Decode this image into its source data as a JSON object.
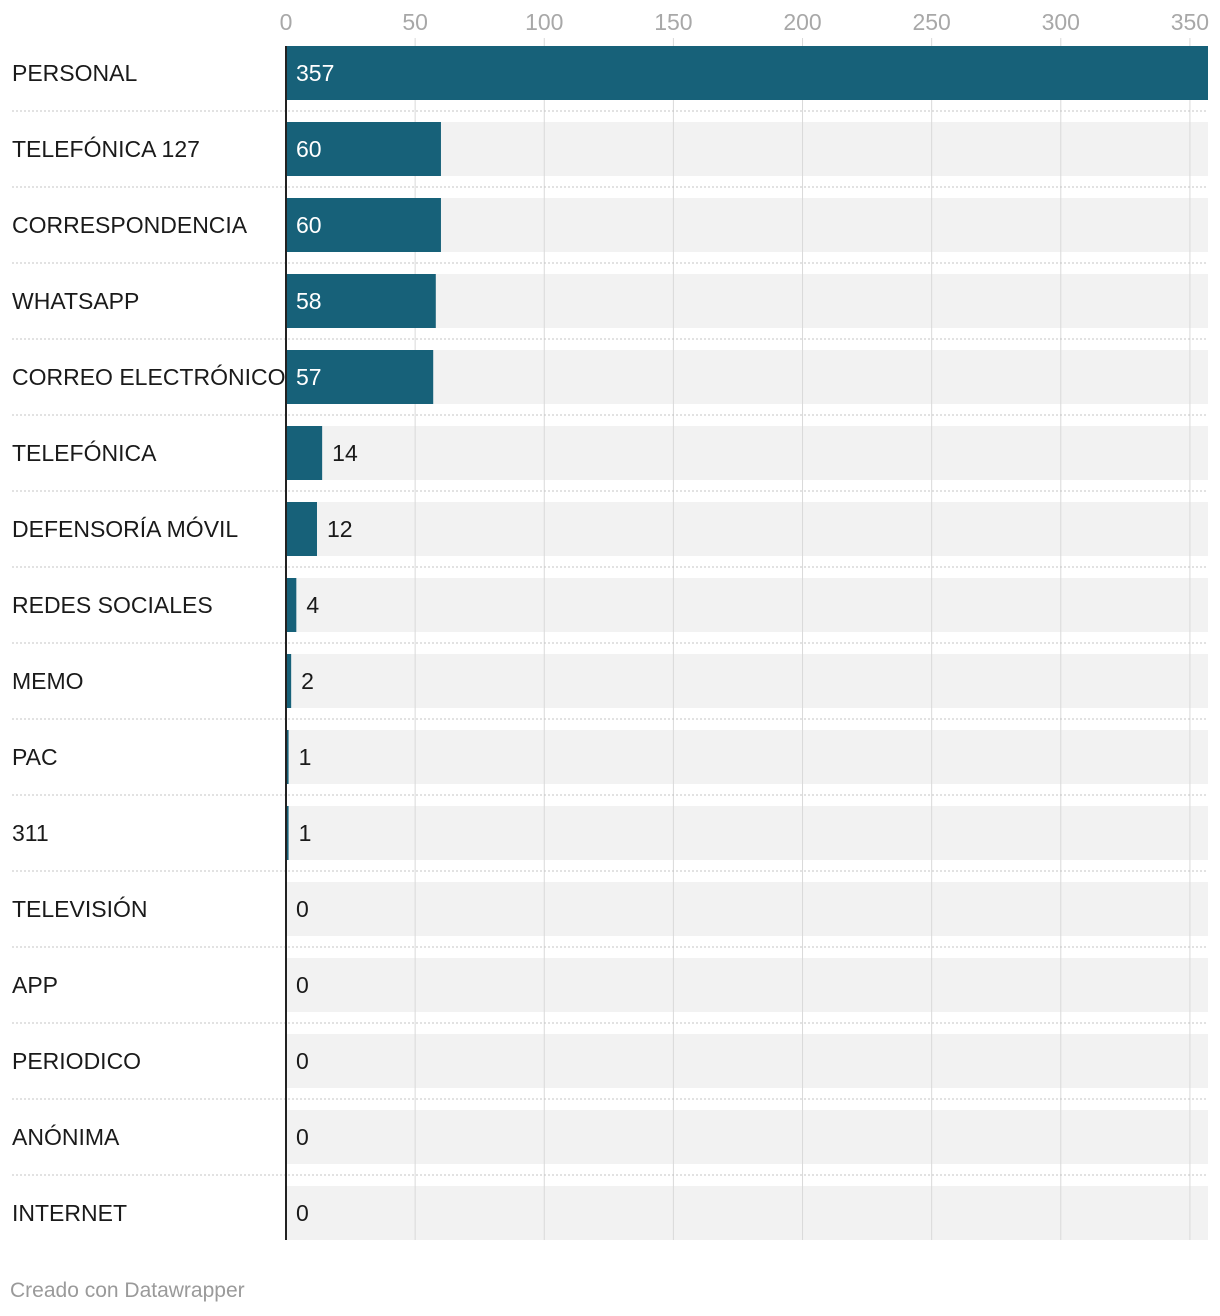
{
  "chart_data": {
    "type": "bar",
    "orientation": "horizontal",
    "categories": [
      "PERSONAL",
      "TELEFÓNICA 127",
      "CORRESPONDENCIA",
      "WHATSAPP",
      "CORREO ELECTRÓNICO",
      "TELEFÓNICA",
      "DEFENSORÍA MÓVIL",
      "REDES SOCIALES",
      "MEMO",
      "PAC",
      "311",
      "TELEVISIÓN",
      "APP",
      "PERIODICO",
      "ANÓNIMA",
      "INTERNET"
    ],
    "values": [
      357,
      60,
      60,
      58,
      57,
      14,
      12,
      4,
      2,
      1,
      1,
      0,
      0,
      0,
      0,
      0
    ],
    "xticks": [
      0,
      50,
      100,
      150,
      200,
      250,
      300,
      350
    ],
    "xlim": [
      0,
      357
    ],
    "grid": true,
    "axis_position": "top",
    "bar_color": "#176179",
    "background_bar_color": "#f2f2f2",
    "grid_color": "#d9d9d9",
    "label_color": "#1a1a1a",
    "value_label_inside_color": "#ffffff"
  },
  "credit": "Creado con Datawrapper"
}
